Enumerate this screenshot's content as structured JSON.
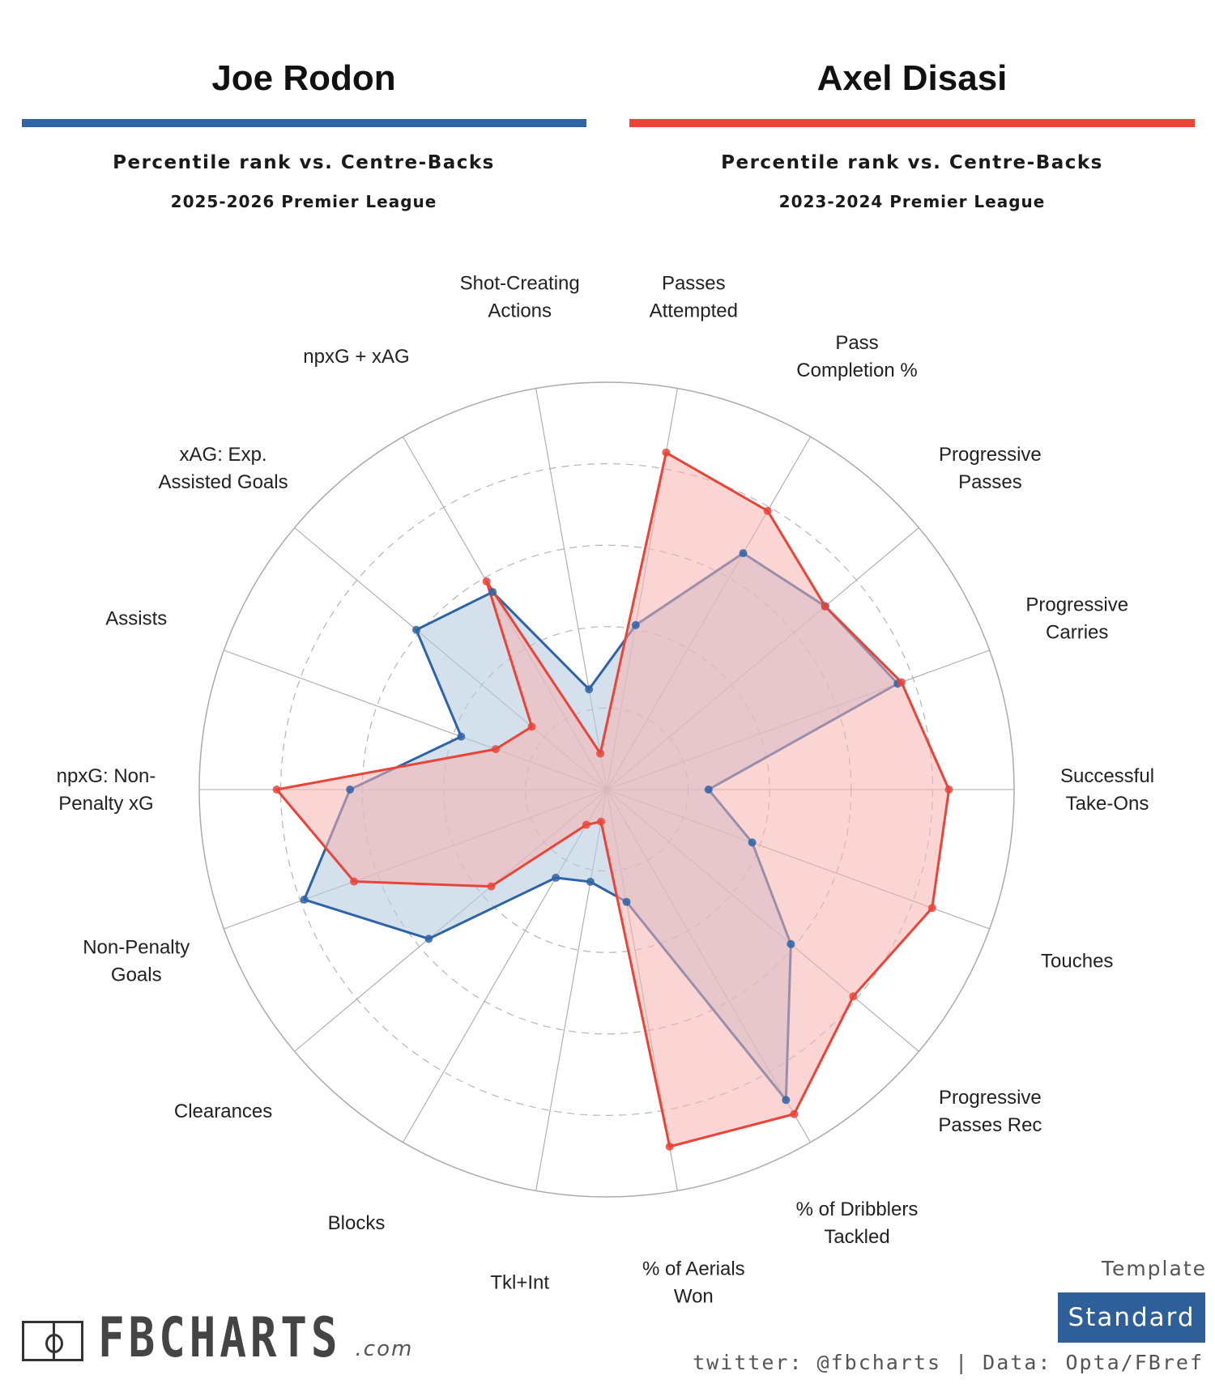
{
  "header": {
    "left": {
      "name": "Joe Rodon",
      "subtitle": "Percentile rank vs. Centre-Backs",
      "season": "2025-2026 Premier League",
      "color": "#2e63a5"
    },
    "right": {
      "name": "Axel Disasi",
      "subtitle": "Percentile rank vs. Centre-Backs",
      "season": "2023-2024 Premier League",
      "color": "#ea4438"
    }
  },
  "chart_data": {
    "type": "radar",
    "range": [
      0,
      100
    ],
    "rings": [
      20,
      40,
      60,
      80,
      100
    ],
    "categories": [
      [
        "Passes",
        "Attempted"
      ],
      [
        "Pass",
        "Completion %"
      ],
      [
        "Progressive",
        "Passes"
      ],
      [
        "Progressive",
        "Carries"
      ],
      [
        "Successful",
        "Take-Ons"
      ],
      [
        "Touches"
      ],
      [
        "Progressive",
        "Passes Rec"
      ],
      [
        "% of Dribblers",
        "Tackled"
      ],
      [
        "% of Aerials",
        "Won"
      ],
      [
        "Tkl+Int"
      ],
      [
        "Blocks"
      ],
      [
        "Clearances"
      ],
      [
        "Non-Penalty",
        "Goals"
      ],
      [
        "npxG: Non-",
        "Penalty xG"
      ],
      [
        "Assists"
      ],
      [
        "xAG: Exp.",
        "Assisted Goals"
      ],
      [
        "npxG + xAG"
      ],
      [
        "Shot-Creating",
        "Actions"
      ]
    ],
    "series": [
      {
        "name": "Joe Rodon",
        "color": "#2e63a5",
        "fill": "#b8cbe0",
        "values": [
          41,
          67,
          70,
          76,
          25,
          38,
          59,
          88,
          28,
          23,
          25,
          57,
          79,
          63,
          38,
          61,
          56,
          25
        ]
      },
      {
        "name": "Axel Disasi",
        "color": "#ea4438",
        "fill": "#f6b3b0",
        "values": [
          84,
          79,
          70,
          77,
          84,
          85,
          79,
          92,
          89,
          8,
          10,
          37,
          66,
          81,
          29,
          24,
          59,
          9
        ]
      }
    ]
  },
  "footer": {
    "logo_text": "FBCHARTS",
    "logo_suffix": ".com",
    "template_label": "Template",
    "template_value": "Standard",
    "credit": "twitter: @fbcharts | Data: Opta/FBref"
  }
}
